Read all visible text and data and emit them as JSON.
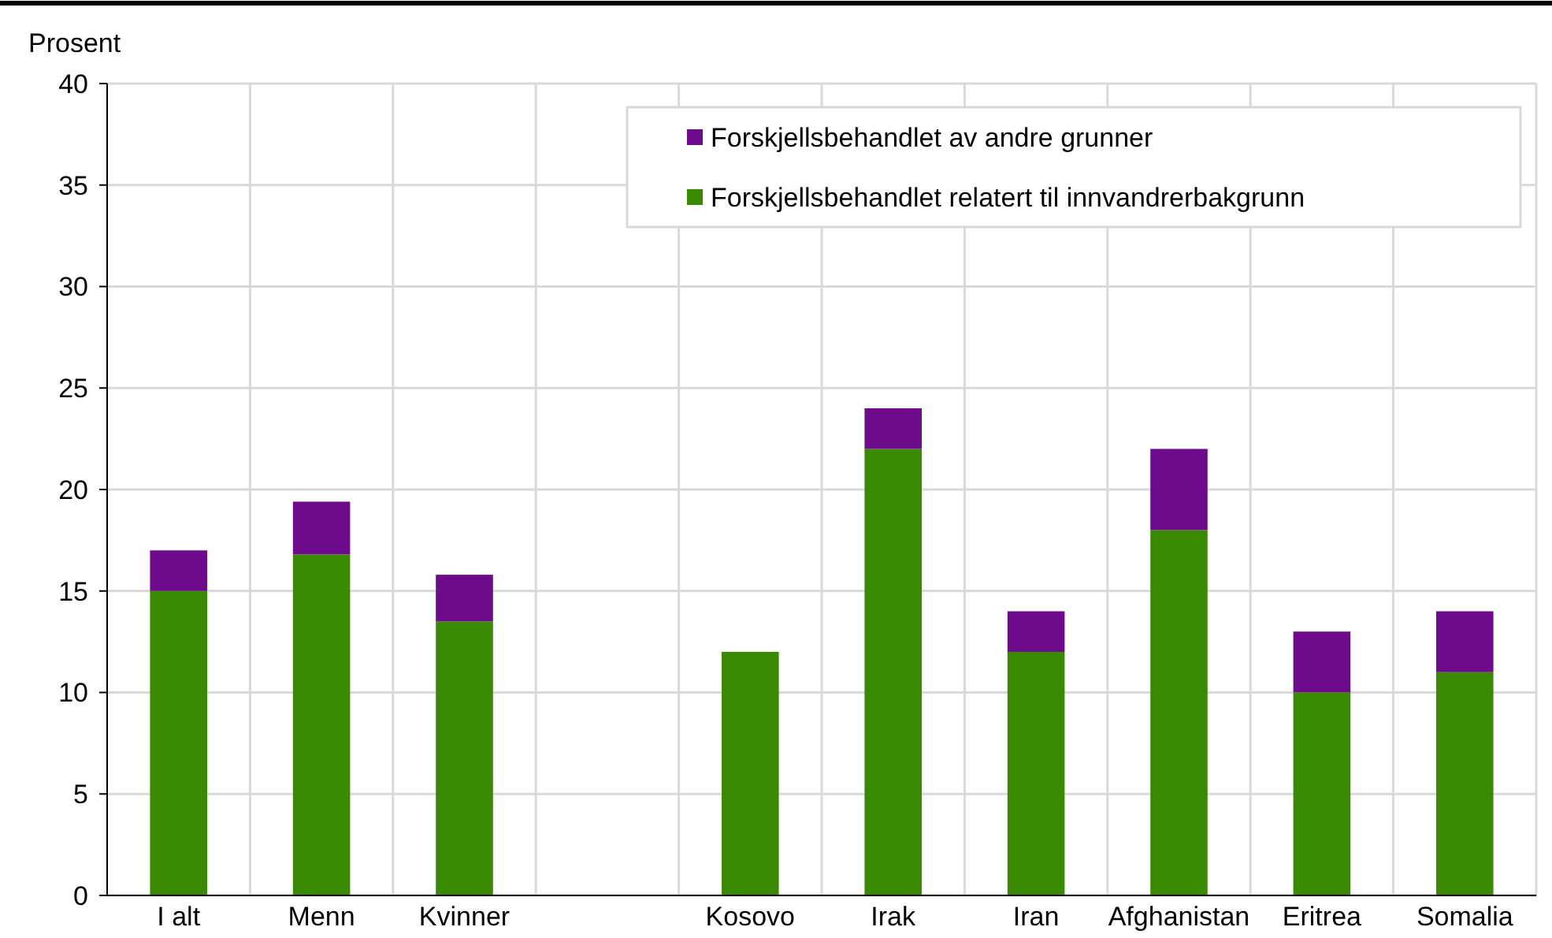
{
  "chart_data": {
    "type": "bar",
    "stacked": true,
    "ylabel": "Prosent",
    "categories": [
      "I alt",
      "Menn",
      "Kvinner",
      null,
      "Kosovo",
      "Irak",
      "Iran",
      "Afghanistan",
      "Eritrea",
      "Somalia"
    ],
    "series": [
      {
        "name": "Forskjellsbehandlet relatert til innvandrerbakgrunn",
        "color": "#3a8a00",
        "values": [
          15,
          16.8,
          13.5,
          null,
          12,
          22,
          12,
          18,
          10,
          11
        ]
      },
      {
        "name": "Forskjellsbehandlet av andre grunner",
        "color": "#6e0a8c",
        "values": [
          2,
          2.6,
          2.3,
          null,
          0,
          2,
          2,
          4,
          3,
          3
        ]
      }
    ],
    "ylim": [
      0,
      40
    ],
    "yticks": [
      0,
      5,
      10,
      15,
      20,
      25,
      30,
      35,
      40
    ],
    "grid": true,
    "legend": "top right"
  }
}
